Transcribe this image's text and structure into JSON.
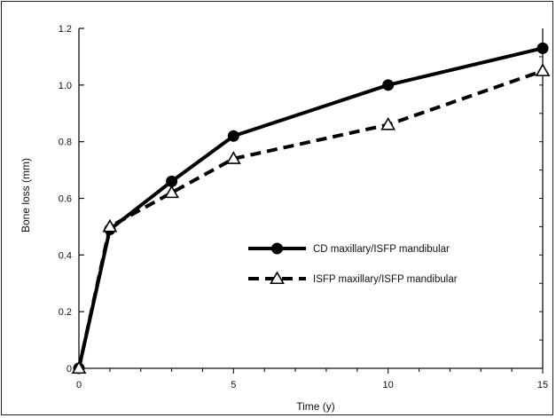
{
  "chart_data": {
    "type": "line",
    "title": "",
    "xlabel": "Time (y)",
    "ylabel": "Bone loss (mm)",
    "xlim": [
      0,
      15
    ],
    "ylim": [
      0,
      1.2
    ],
    "x_ticks": [
      0,
      5,
      10,
      15
    ],
    "x_tick_labels": [
      "0",
      "5",
      "10",
      "15"
    ],
    "y_ticks": [
      0,
      0.2,
      0.4,
      0.6,
      0.8,
      1.0,
      1.2
    ],
    "y_tick_labels": [
      "0",
      "0.2",
      "0.4",
      "0.6",
      "0.8",
      "1.0",
      "1.2"
    ],
    "grid": false,
    "legend_placement": "center-right",
    "series": [
      {
        "name": "CD maxillary/ISFP mandibular",
        "marker": "filled-circle",
        "line_style": "solid",
        "color": "#000000",
        "x": [
          0,
          1,
          3,
          5,
          10,
          15
        ],
        "y": [
          0,
          0.49,
          0.66,
          0.82,
          1.0,
          1.13
        ]
      },
      {
        "name": "ISFP maxillary/ISFP mandibular",
        "marker": "open-triangle",
        "line_style": "dashed",
        "color": "#000000",
        "x": [
          0,
          1,
          3,
          5,
          10,
          15
        ],
        "y": [
          0,
          0.5,
          0.62,
          0.74,
          0.86,
          1.05
        ]
      }
    ]
  }
}
